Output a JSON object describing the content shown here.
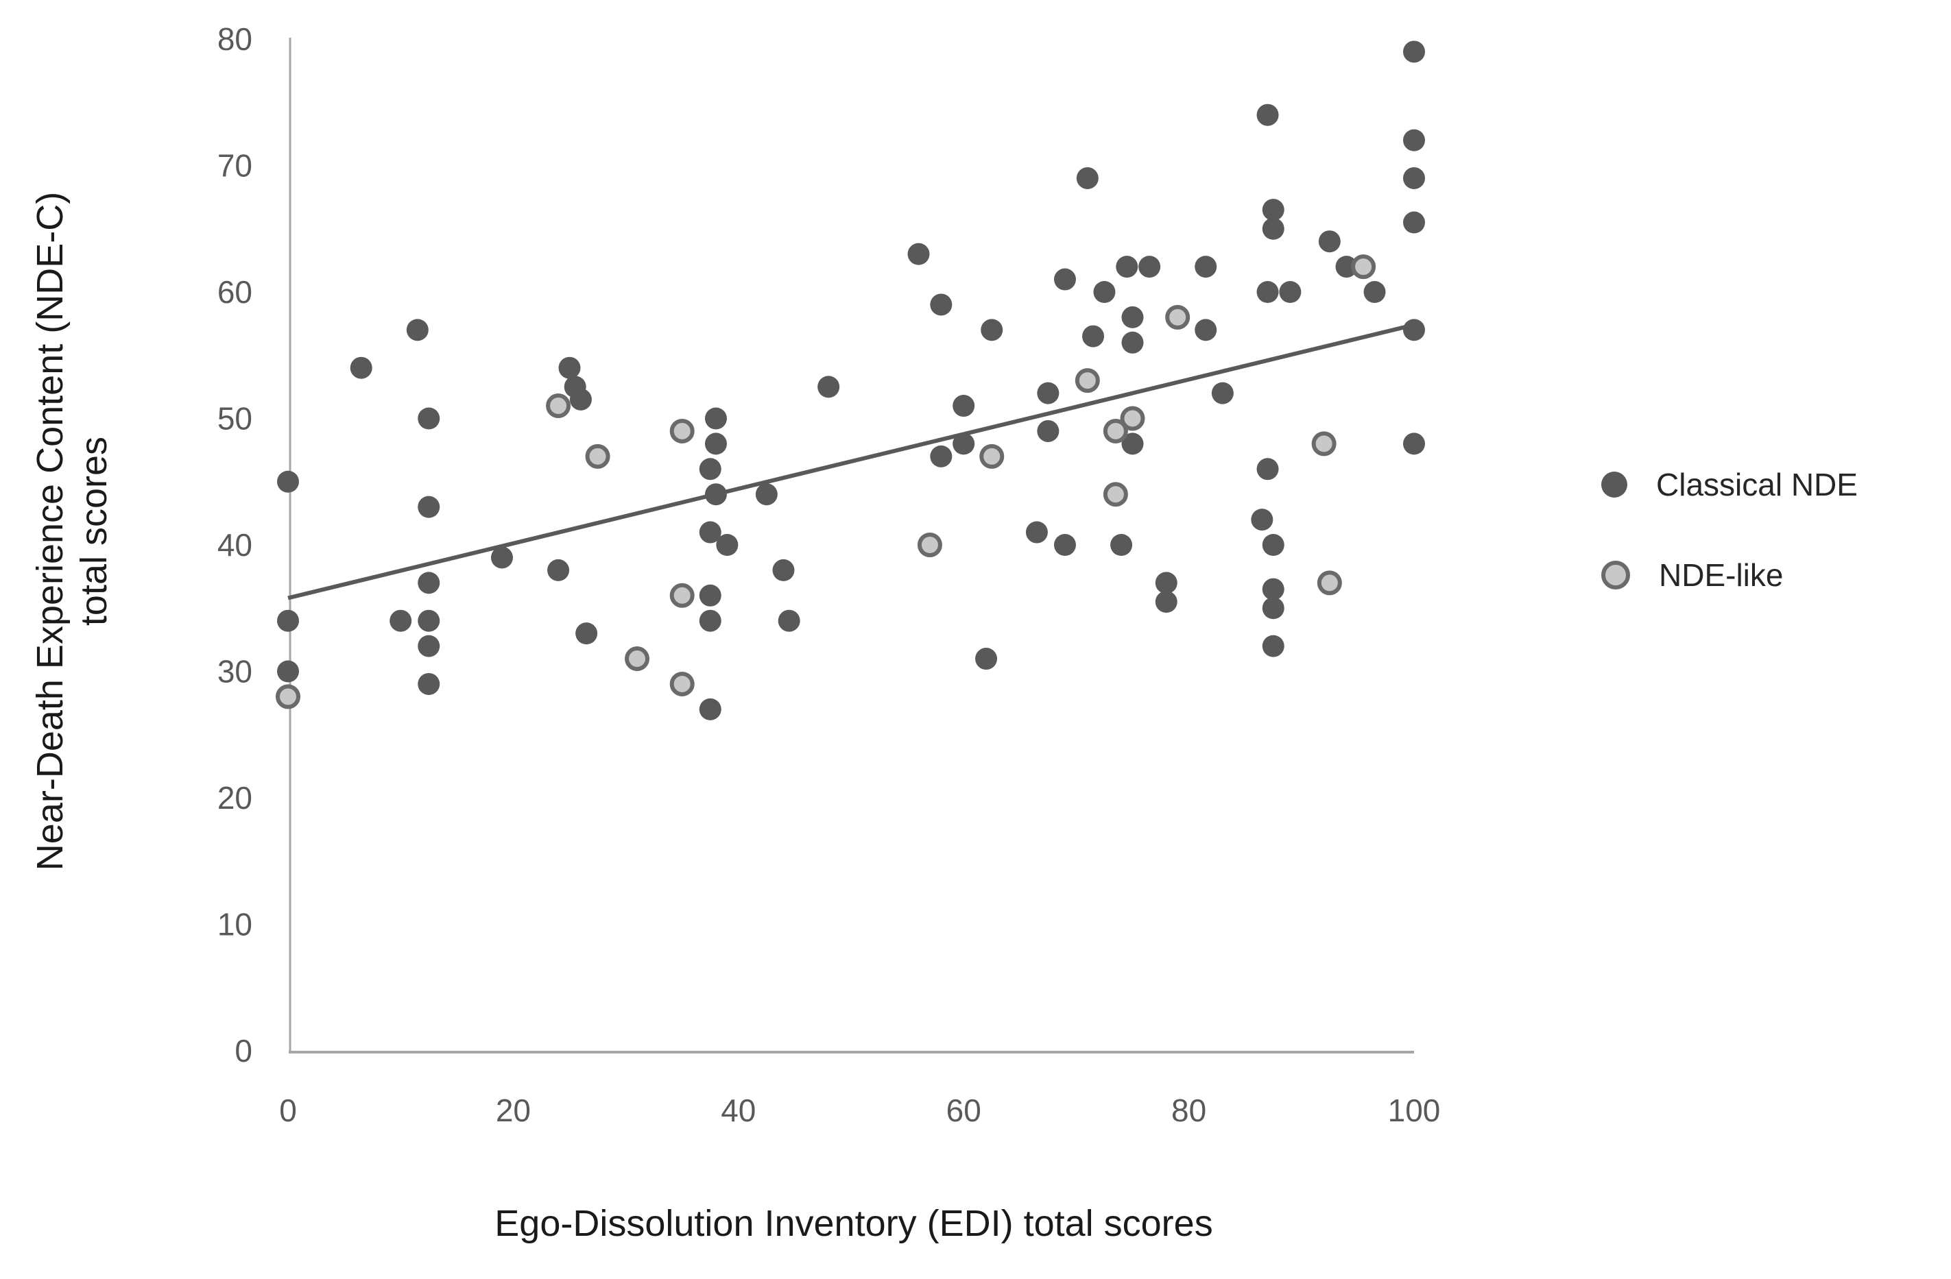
{
  "chart_data": {
    "type": "scatter",
    "title": "",
    "xlabel": "Ego-Dissolution Inventory (EDI) total scores",
    "ylabel_line1": "Near-Death Experience Content (NDE-C)",
    "ylabel_line2": "total scores",
    "xlim": [
      0,
      100
    ],
    "ylim": [
      0,
      80
    ],
    "xticks": [
      0,
      20,
      40,
      60,
      80,
      100
    ],
    "yticks": [
      0,
      10,
      20,
      30,
      40,
      50,
      60,
      70,
      80
    ],
    "grid": false,
    "legend_position": "right",
    "axis_color": "#a6a6a6",
    "tick_label_color": "#595959",
    "trendline": {
      "x1": 0,
      "y1": 35.8,
      "x2": 100,
      "y2": 57.4,
      "color": "#595959",
      "width": 6
    },
    "series": [
      {
        "name": "Classical NDE",
        "marker": "filled",
        "fill": "#595959",
        "stroke": "none",
        "radius": 16,
        "points": [
          [
            0,
            45
          ],
          [
            0,
            34
          ],
          [
            0,
            30
          ],
          [
            6.5,
            54
          ],
          [
            10,
            34
          ],
          [
            11.5,
            57
          ],
          [
            12.5,
            50
          ],
          [
            12.5,
            43
          ],
          [
            12.5,
            37
          ],
          [
            12.5,
            34
          ],
          [
            12.5,
            32
          ],
          [
            12.5,
            29
          ],
          [
            19,
            39
          ],
          [
            24,
            38
          ],
          [
            25,
            54
          ],
          [
            25.5,
            52.5
          ],
          [
            26,
            51.5
          ],
          [
            26.5,
            33
          ],
          [
            38,
            50
          ],
          [
            38,
            48
          ],
          [
            37.5,
            46
          ],
          [
            38,
            44
          ],
          [
            37.5,
            41
          ],
          [
            39,
            40
          ],
          [
            37.5,
            36
          ],
          [
            37.5,
            34
          ],
          [
            37.5,
            27
          ],
          [
            42.5,
            44
          ],
          [
            44,
            38
          ],
          [
            44.5,
            34
          ],
          [
            48,
            52.5
          ],
          [
            56,
            63
          ],
          [
            58,
            59
          ],
          [
            58,
            47
          ],
          [
            60,
            51
          ],
          [
            60,
            48
          ],
          [
            62,
            31
          ],
          [
            62.5,
            57
          ],
          [
            66.5,
            41
          ],
          [
            67.5,
            52
          ],
          [
            67.5,
            49
          ],
          [
            69,
            40
          ],
          [
            69,
            61
          ],
          [
            71,
            69
          ],
          [
            71.5,
            56.5
          ],
          [
            72.5,
            60
          ],
          [
            74,
            40
          ],
          [
            74.5,
            62
          ],
          [
            75,
            48
          ],
          [
            75,
            58
          ],
          [
            75,
            56
          ],
          [
            76.5,
            62
          ],
          [
            78,
            37
          ],
          [
            78,
            35.5
          ],
          [
            81.5,
            62
          ],
          [
            81.5,
            57
          ],
          [
            83,
            52
          ],
          [
            86.5,
            42
          ],
          [
            87,
            46
          ],
          [
            87,
            74
          ],
          [
            87.5,
            66.5
          ],
          [
            87.5,
            65
          ],
          [
            87.5,
            40
          ],
          [
            87.5,
            36.5
          ],
          [
            87.5,
            35
          ],
          [
            87.5,
            32
          ],
          [
            87,
            60
          ],
          [
            89,
            60
          ],
          [
            92.5,
            64
          ],
          [
            94,
            62
          ],
          [
            96.5,
            60
          ],
          [
            100,
            79
          ],
          [
            100,
            72
          ],
          [
            100,
            69
          ],
          [
            100,
            65.5
          ],
          [
            100,
            57
          ],
          [
            100,
            48
          ]
        ]
      },
      {
        "name": "NDE-like",
        "marker": "ring",
        "fill": "#c8c8c8",
        "stroke": "#6a6a6a",
        "radius": 15,
        "points": [
          [
            0,
            28
          ],
          [
            24,
            51
          ],
          [
            27.5,
            47
          ],
          [
            31,
            31
          ],
          [
            35,
            49
          ],
          [
            35,
            36
          ],
          [
            35,
            29
          ],
          [
            57,
            40
          ],
          [
            62.5,
            47
          ],
          [
            71,
            53
          ],
          [
            73.5,
            49
          ],
          [
            75,
            50
          ],
          [
            73.5,
            44
          ],
          [
            79,
            58
          ],
          [
            92,
            48
          ],
          [
            92.5,
            37
          ],
          [
            95.5,
            62
          ]
        ]
      }
    ],
    "legend": [
      {
        "label": "Classical NDE",
        "marker": "filled"
      },
      {
        "label": "NDE-like",
        "marker": "ring"
      }
    ]
  }
}
